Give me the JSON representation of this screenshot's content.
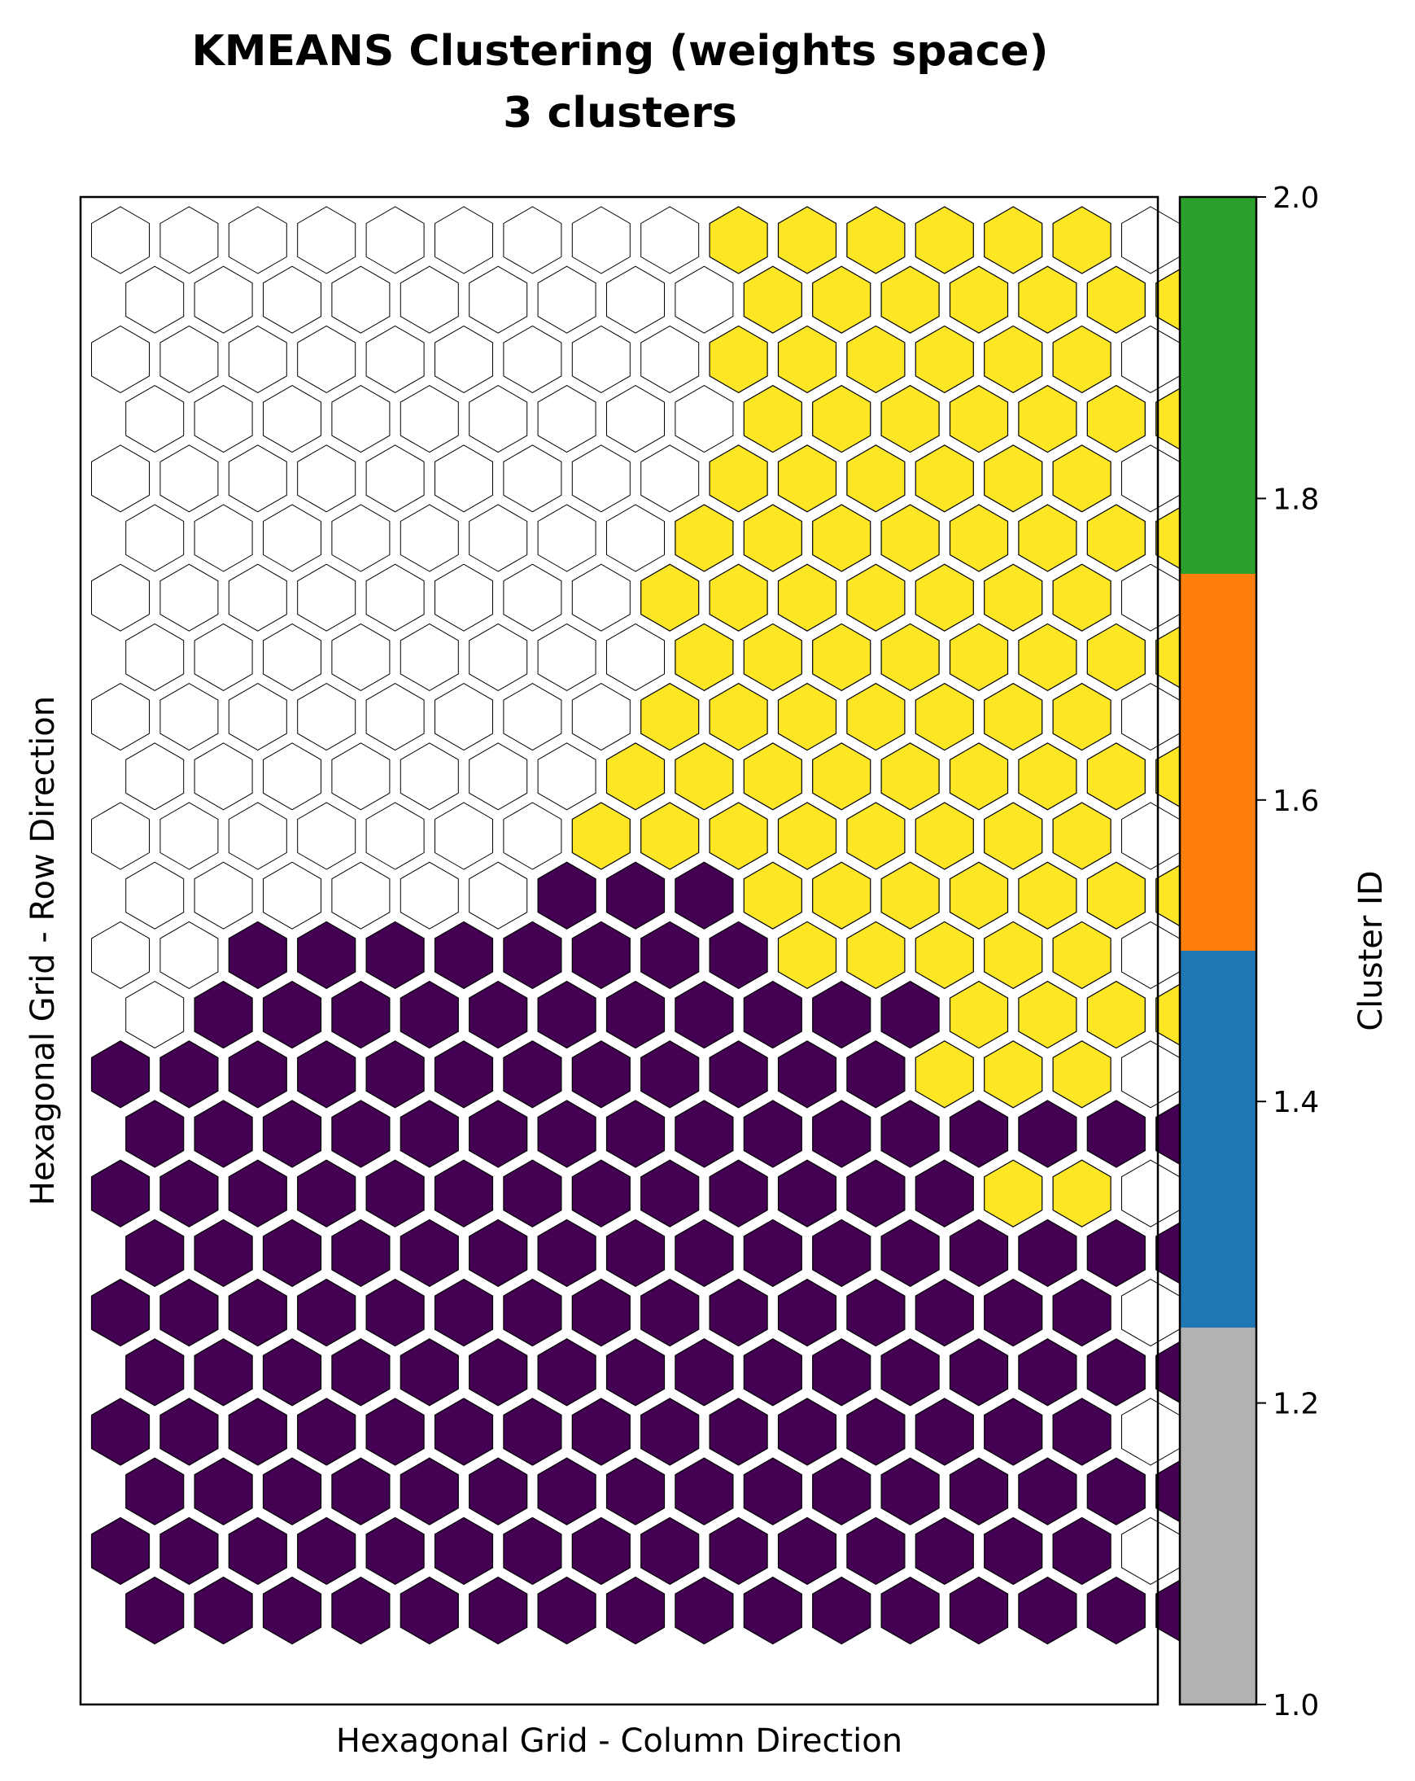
{
  "chart_data": {
    "type": "heatmap",
    "title_line1": "KMEANS Clustering (weights space)",
    "title_line2": "3 clusters",
    "xlabel": "Hexagonal Grid - Column Direction",
    "ylabel": "Hexagonal Grid - Row Direction",
    "grid_shape": {
      "rows": 24,
      "cols": 16,
      "layout": "hexagonal, odd rows offset right, row 0 at top"
    },
    "rows_top_to_bottom": [
      "0000000002222220",
      "0000000002222222",
      "0000000002222220",
      "0000000002222222",
      "0000000002222220",
      "0000000022222222",
      "0000000022222220",
      "0000000022222222",
      "0000000022222220",
      "0000000222222222",
      "0000000222222220",
      "0000001112222222",
      "0011111111222220",
      "0111111111112222",
      "1111111111112220",
      "1111111111111111",
      "1111111111111220",
      "1111111111111111",
      "1111111111111110",
      "1111111111111111",
      "1111111111111110",
      "1111111111111111",
      "1111111111111110",
      "1111111111111111"
    ],
    "legend_codes": {
      "0": "empty (white, thin outline)",
      "1": "cluster dark purple",
      "2": "cluster yellow"
    },
    "cluster_colors": {
      "0": "#ffffff",
      "1": "#440154",
      "2": "#fde725"
    },
    "colorbar": {
      "label": "Cluster ID",
      "range": [
        1.0,
        2.0
      ],
      "ticks": [
        "1.0",
        "1.2",
        "1.4",
        "1.6",
        "1.8",
        "2.0"
      ],
      "segments": [
        {
          "from": 1.0,
          "to": 1.25,
          "color": "#b2b2b2"
        },
        {
          "from": 1.25,
          "to": 1.5,
          "color": "#1f77b4"
        },
        {
          "from": 1.5,
          "to": 1.75,
          "color": "#ff7f0e"
        },
        {
          "from": 1.75,
          "to": 2.0,
          "color": "#2ca02c"
        }
      ]
    }
  }
}
